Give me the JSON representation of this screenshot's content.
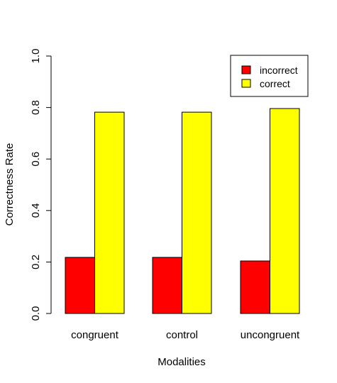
{
  "chart_data": {
    "type": "bar",
    "xlabel": "Modalities",
    "ylabel": "Correctness Rate",
    "ylim": [
      0,
      1
    ],
    "yticks": [
      "0.0",
      "0.2",
      "0.4",
      "0.6",
      "0.8",
      "1.0"
    ],
    "categories": [
      "congruent",
      "control",
      "uncongruent"
    ],
    "series": [
      {
        "name": "incorrect",
        "color": "#ff0000",
        "values": [
          0.218,
          0.218,
          0.204
        ]
      },
      {
        "name": "correct",
        "color": "#ffff00",
        "values": [
          0.782,
          0.782,
          0.796
        ]
      }
    ],
    "legend_position": "top-right",
    "grid": false
  }
}
